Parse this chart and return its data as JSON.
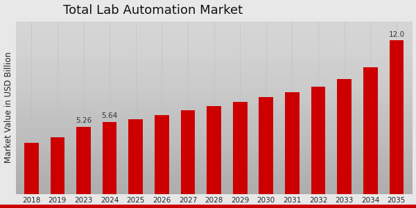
{
  "title": "Total Lab Automation Market",
  "ylabel": "Market Value in USD Billion",
  "categories": [
    "2018",
    "2019",
    "2023",
    "2024",
    "2025",
    "2026",
    "2027",
    "2028",
    "2029",
    "2030",
    "2031",
    "2032",
    "2033",
    "2034",
    "2035"
  ],
  "values": [
    4.0,
    4.4,
    5.26,
    5.64,
    5.85,
    6.15,
    6.55,
    6.85,
    7.2,
    7.55,
    7.95,
    8.4,
    9.0,
    9.9,
    12.0
  ],
  "bar_color": "#cc0000",
  "bg_top": "#ffffff",
  "bg_bottom": "#d0d0d0",
  "grid_color": "#bbbbbb",
  "labeled_bars": {
    "2023": "5.26",
    "2024": "5.64",
    "2035": "12.0"
  },
  "title_fontsize": 13,
  "ylabel_fontsize": 8.5,
  "tick_fontsize": 7.5,
  "label_fontsize": 7.5,
  "ylim": [
    0,
    13.5
  ],
  "red_border_color": "#cc0000"
}
